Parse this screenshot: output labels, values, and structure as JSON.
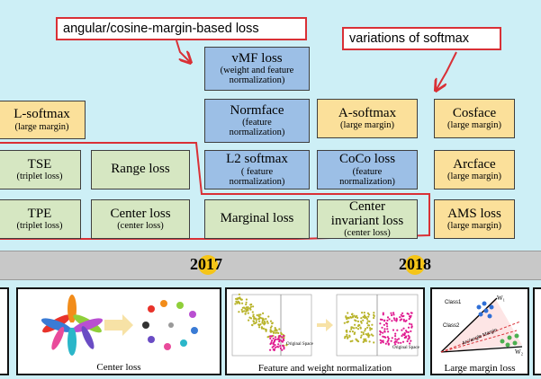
{
  "callouts": {
    "angular": "angular/cosine-margin-based loss",
    "softmax_variations": "variations of softmax"
  },
  "boxes": {
    "lsoftmax": {
      "title": "L-softmax",
      "sub": "(large margin)"
    },
    "tse": {
      "title": "TSE",
      "sub": "(triplet loss)"
    },
    "tpe": {
      "title": "TPE",
      "sub": "(triplet loss)"
    },
    "range": {
      "title": "Range loss"
    },
    "center": {
      "title": "Center loss",
      "sub": "(center loss)"
    },
    "vmf": {
      "title": "vMF loss",
      "sub1": "(weight and feature",
      "sub2": "normalization)"
    },
    "normface": {
      "title": "Normface",
      "sub1": "(feature",
      "sub2": "normalization)"
    },
    "l2softmax": {
      "title": "L2 softmax",
      "sub1": "( feature",
      "sub2": "normalization)"
    },
    "marginal": {
      "title": "Marginal loss"
    },
    "asoftmax": {
      "title": "A-softmax",
      "sub": "(large margin)"
    },
    "coco": {
      "title": "CoCo loss",
      "sub1": "(feature",
      "sub2": "normalization)"
    },
    "cil": {
      "title1": "Center",
      "title2": "invariant loss",
      "sub": "(center loss)"
    },
    "cosface": {
      "title": "Cosface",
      "sub": "(large margin)"
    },
    "arcface": {
      "title": "Arcface",
      "sub": "(large margin)"
    },
    "amsloss": {
      "title": "AMS loss",
      "sub": "(large margin)"
    }
  },
  "timeline": {
    "year1": "2017",
    "year2": "2018"
  },
  "panels": {
    "center_loss": {
      "caption": "Center loss"
    },
    "norm": {
      "caption": "Feature and weight normalization",
      "space_label": "Original Space"
    },
    "large_margin": {
      "caption": "Large margin loss",
      "class1": "Class1",
      "class2": "Class2",
      "w1": "W₁",
      "w2": "W₂",
      "arc_label": "Arc/angle Margin"
    }
  },
  "colors": {
    "callout_border": "#d93036",
    "orange": "#fbe09a",
    "green": "#d6e7c2",
    "blue": "#9cbfe6",
    "timeline_dot": "#f5c518",
    "scatter_olive": "#b8b32a",
    "scatter_magenta": "#e0198f"
  }
}
